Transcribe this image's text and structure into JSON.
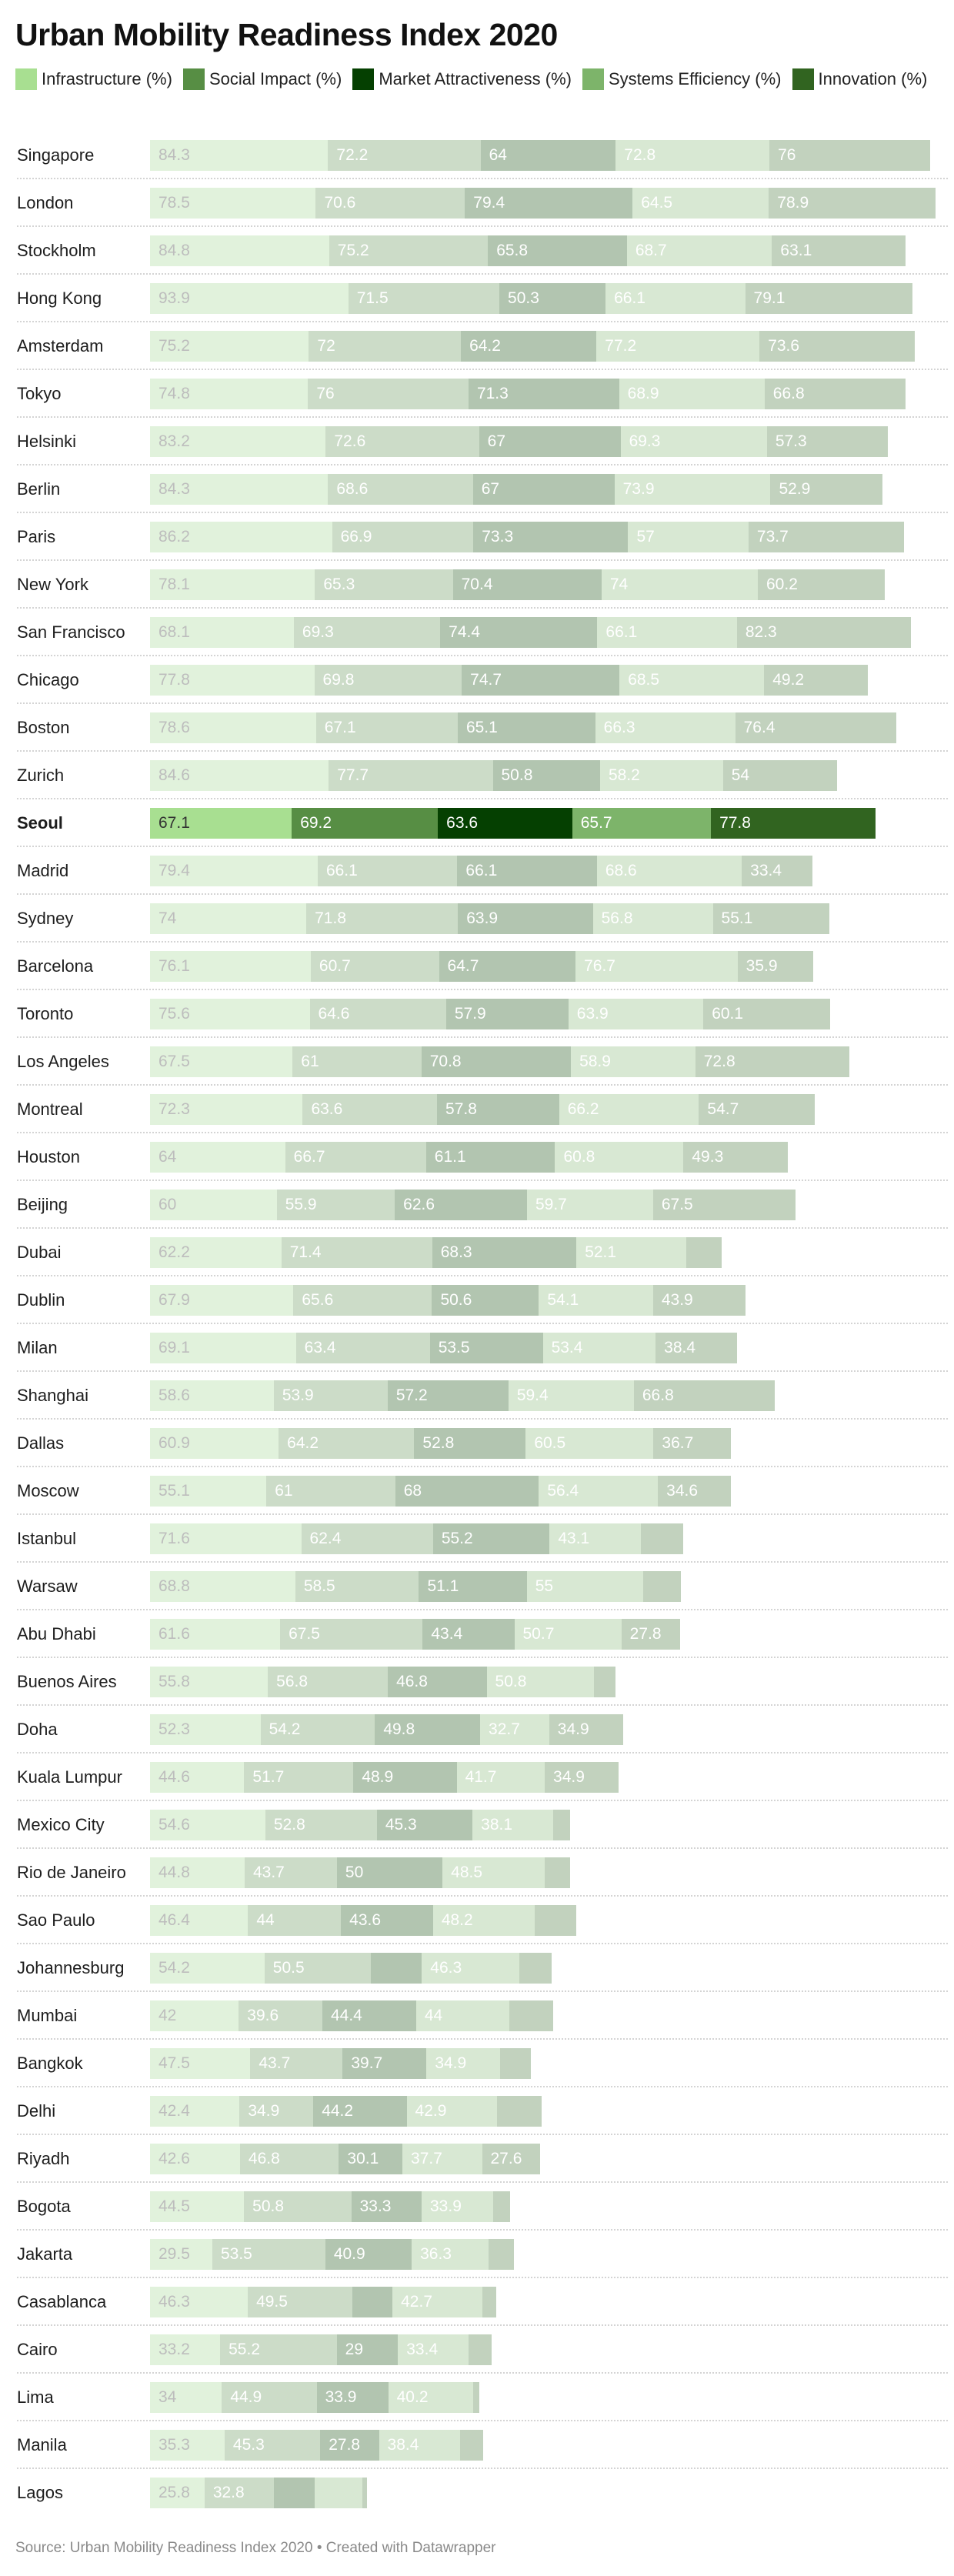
{
  "header": {
    "title": "Urban Mobility Readiness Index 2020"
  },
  "footer": {
    "source": "Source: Urban Mobility Readiness Index 2020 • Created with Datawrapper"
  },
  "highlight_city": "Seoul",
  "colors": {
    "active": [
      "#a8df91",
      "#578e44",
      "#054001",
      "#7db46a",
      "#316420"
    ],
    "muted": [
      "#e1f2dc",
      "#ccdcc8",
      "#b2c5b0",
      "#d8e8d3",
      "#c2d2be"
    ],
    "active_label": [
      "#333333",
      "#ffffff",
      "#ffffff",
      "#ffffff",
      "#ffffff"
    ],
    "muted_label": [
      "#bdbdbd",
      "#ffffff",
      "#ffffff",
      "#ffffff",
      "#ffffff"
    ]
  },
  "chart_data": {
    "type": "bar",
    "orientation": "horizontal",
    "stacked": true,
    "title": "Urban Mobility Readiness Index 2020",
    "xlabel": "",
    "ylabel": "",
    "legend_position": "top-left",
    "grid": false,
    "categories": [
      "Singapore",
      "London",
      "Stockholm",
      "Hong Kong",
      "Amsterdam",
      "Tokyo",
      "Helsinki",
      "Berlin",
      "Paris",
      "New York",
      "San Francisco",
      "Chicago",
      "Boston",
      "Zurich",
      "Seoul",
      "Madrid",
      "Sydney",
      "Barcelona",
      "Toronto",
      "Los Angeles",
      "Montreal",
      "Houston",
      "Beijing",
      "Dubai",
      "Dublin",
      "Milan",
      "Shanghai",
      "Dallas",
      "Moscow",
      "Istanbul",
      "Warsaw",
      "Abu Dhabi",
      "Buenos Aires",
      "Doha",
      "Kuala Lumpur",
      "Mexico City",
      "Rio de Janeiro",
      "Sao Paulo",
      "Johannesburg",
      "Mumbai",
      "Bangkok",
      "Delhi",
      "Riyadh",
      "Bogota",
      "Jakarta",
      "Casablanca",
      "Cairo",
      "Lima",
      "Manila",
      "Lagos"
    ],
    "series": [
      {
        "name": "Infrastructure (%)",
        "values": [
          84.3,
          78.5,
          84.8,
          93.9,
          75.2,
          74.8,
          83.2,
          84.3,
          86.2,
          78.1,
          68.1,
          77.8,
          78.6,
          84.6,
          67.1,
          79.4,
          74,
          76.1,
          75.6,
          67.5,
          72.3,
          64,
          60,
          62.2,
          67.9,
          69.1,
          58.6,
          60.9,
          55.1,
          71.6,
          68.8,
          61.6,
          55.8,
          52.3,
          44.6,
          54.6,
          44.8,
          46.4,
          54.2,
          42,
          47.5,
          42.4,
          42.6,
          44.5,
          29.5,
          46.3,
          33.2,
          34,
          35.3,
          25.8
        ]
      },
      {
        "name": "Social Impact (%)",
        "values": [
          72.2,
          70.6,
          75.2,
          71.5,
          72,
          76,
          72.6,
          68.6,
          66.9,
          65.3,
          69.3,
          69.8,
          67.1,
          77.7,
          69.2,
          66.1,
          71.8,
          60.7,
          64.6,
          61,
          63.6,
          66.7,
          55.9,
          71.4,
          65.6,
          63.4,
          53.9,
          64.2,
          61,
          62.4,
          58.5,
          67.5,
          56.8,
          54.2,
          51.7,
          52.8,
          43.7,
          44,
          50.5,
          39.6,
          43.7,
          34.9,
          46.8,
          50.8,
          53.5,
          49.5,
          55.2,
          44.9,
          45.3,
          32.8
        ]
      },
      {
        "name": "Market Attractiveness (%)",
        "values": [
          64,
          79.4,
          65.8,
          50.3,
          64.2,
          71.3,
          67,
          67,
          73.3,
          70.4,
          74.4,
          74.7,
          65.1,
          50.8,
          63.6,
          66.1,
          63.9,
          64.7,
          57.9,
          70.8,
          57.8,
          61.1,
          62.6,
          68.3,
          50.6,
          53.5,
          57.2,
          52.8,
          68,
          55.2,
          51.1,
          43.4,
          46.8,
          49.8,
          48.9,
          45.3,
          50,
          43.6,
          24,
          44.4,
          39.7,
          44.2,
          30.1,
          33.3,
          40.9,
          19,
          29,
          33.9,
          27.8,
          19.5
        ]
      },
      {
        "name": "Systems Efficiency (%)",
        "values": [
          72.8,
          64.5,
          68.7,
          66.1,
          77.2,
          68.9,
          69.3,
          73.9,
          57,
          74,
          66.1,
          68.5,
          66.3,
          58.2,
          65.7,
          68.6,
          56.8,
          76.7,
          63.9,
          58.9,
          66.2,
          60.8,
          59.7,
          52.1,
          54.1,
          53.4,
          59.4,
          60.5,
          56.4,
          43.1,
          55,
          50.7,
          50.8,
          32.7,
          41.7,
          38.1,
          48.5,
          48.2,
          46.3,
          44,
          34.9,
          42.9,
          37.7,
          33.9,
          36.3,
          42.7,
          33.4,
          40.2,
          38.4,
          22.6
        ]
      },
      {
        "name": "Innovation (%)",
        "values": [
          76,
          78.9,
          63.1,
          79.1,
          73.6,
          66.8,
          57.3,
          52.9,
          73.7,
          60.2,
          82.3,
          49.2,
          76.4,
          54,
          77.8,
          33.4,
          55.1,
          35.9,
          60.1,
          72.8,
          54.7,
          49.3,
          67.5,
          16.6,
          43.9,
          38.4,
          66.8,
          36.7,
          34.6,
          20,
          18,
          27.8,
          10.3,
          34.9,
          34.9,
          8,
          12,
          19.5,
          15,
          21,
          14.6,
          21,
          27.6,
          8,
          12,
          6.6,
          11,
          3,
          11,
          2
        ]
      }
    ],
    "value_labels_shown": [
      [
        true,
        true,
        true,
        true,
        true,
        true,
        true,
        true,
        true,
        true,
        true,
        true,
        true,
        true,
        true,
        true,
        true,
        true,
        true,
        true,
        true,
        true,
        true,
        true,
        true,
        true,
        true,
        true,
        true,
        true,
        true,
        true,
        true,
        true,
        true,
        true,
        true,
        true,
        true,
        true,
        true,
        true,
        true,
        true,
        true,
        true,
        true,
        true,
        true,
        true
      ],
      [
        true,
        true,
        true,
        true,
        true,
        true,
        true,
        true,
        true,
        true,
        true,
        true,
        true,
        true,
        true,
        true,
        true,
        true,
        true,
        true,
        true,
        true,
        true,
        true,
        true,
        true,
        true,
        true,
        true,
        true,
        true,
        true,
        true,
        true,
        true,
        true,
        true,
        true,
        true,
        true,
        true,
        true,
        true,
        true,
        true,
        true,
        true,
        true,
        true,
        true
      ],
      [
        true,
        true,
        true,
        true,
        true,
        true,
        true,
        true,
        true,
        true,
        true,
        true,
        true,
        true,
        true,
        true,
        true,
        true,
        true,
        true,
        true,
        true,
        true,
        true,
        true,
        true,
        true,
        true,
        true,
        true,
        true,
        true,
        true,
        true,
        true,
        true,
        true,
        true,
        false,
        true,
        true,
        true,
        true,
        true,
        true,
        false,
        true,
        true,
        true,
        false
      ],
      [
        true,
        true,
        true,
        true,
        true,
        true,
        true,
        true,
        true,
        true,
        true,
        true,
        true,
        true,
        true,
        true,
        true,
        true,
        true,
        true,
        true,
        true,
        true,
        true,
        true,
        true,
        true,
        true,
        true,
        true,
        true,
        true,
        true,
        true,
        true,
        true,
        true,
        true,
        true,
        true,
        true,
        true,
        true,
        true,
        true,
        true,
        true,
        true,
        true,
        false
      ],
      [
        true,
        true,
        true,
        true,
        true,
        true,
        true,
        true,
        true,
        true,
        true,
        true,
        true,
        true,
        true,
        true,
        true,
        true,
        true,
        true,
        true,
        true,
        true,
        false,
        true,
        true,
        true,
        true,
        true,
        false,
        false,
        true,
        false,
        true,
        true,
        false,
        false,
        false,
        false,
        false,
        false,
        false,
        true,
        false,
        false,
        false,
        false,
        false,
        false,
        false
      ]
    ]
  }
}
